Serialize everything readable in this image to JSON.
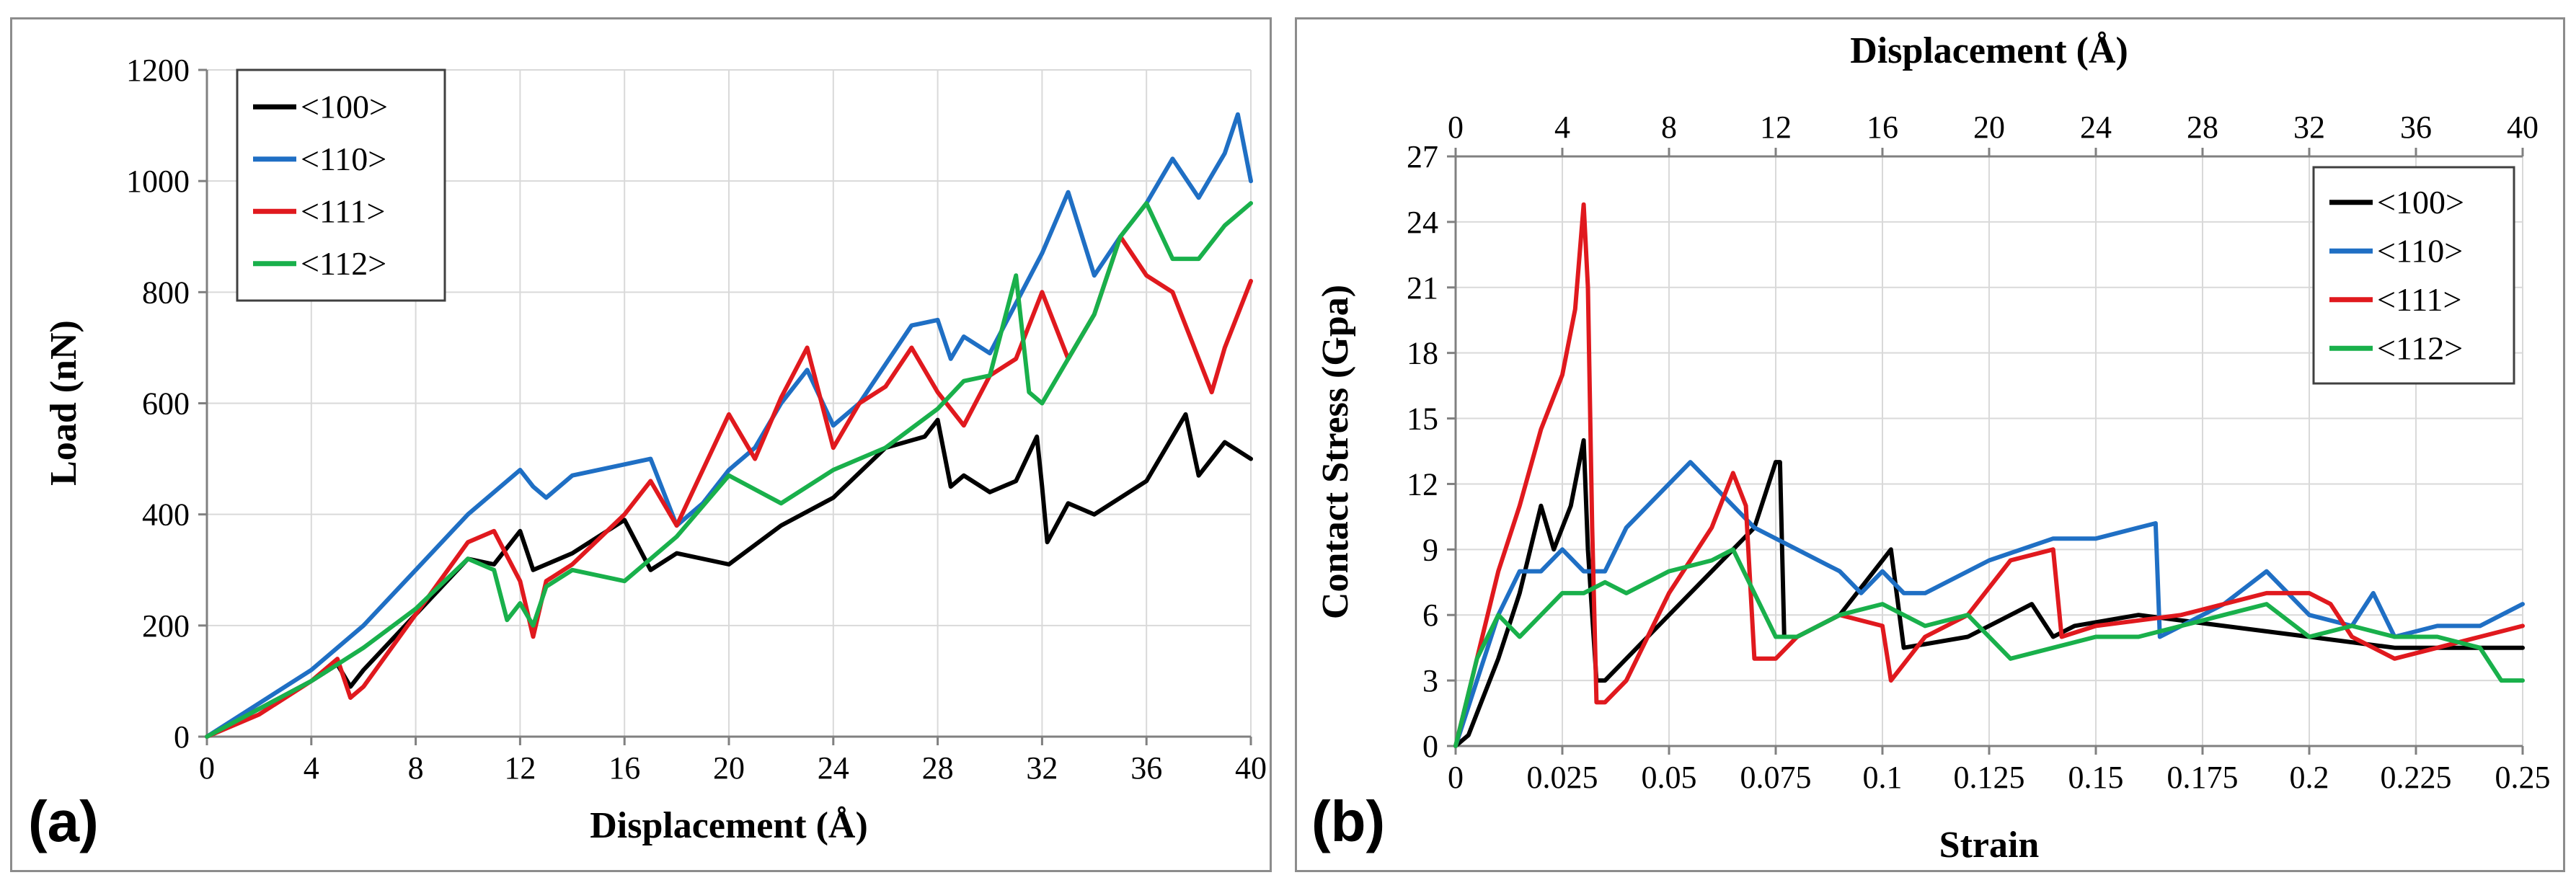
{
  "chart_data": [
    {
      "panel_label": "(a)",
      "type": "line",
      "title": "",
      "xlabel": "Displacement (Å)",
      "ylabel": "Load (nN)",
      "xlim": [
        0,
        40
      ],
      "ylim": [
        0,
        1200
      ],
      "xticks": [
        0,
        4,
        8,
        12,
        16,
        20,
        24,
        28,
        32,
        36,
        40
      ],
      "yticks": [
        0,
        200,
        400,
        600,
        800,
        1000,
        1200
      ],
      "grid": true,
      "legend_position": "top-left",
      "series": [
        {
          "name": "<100>",
          "color": "#000000",
          "x": [
            0,
            2,
            4,
            5,
            5.5,
            6,
            8,
            10,
            11,
            12,
            12.5,
            14,
            16,
            17,
            18,
            20,
            22,
            24,
            26,
            27.5,
            28,
            28.5,
            29,
            30,
            31,
            31.8,
            32,
            32.2,
            33,
            34,
            36,
            37,
            37.5,
            38,
            39,
            40
          ],
          "y": [
            0,
            50,
            100,
            130,
            90,
            120,
            220,
            320,
            310,
            370,
            300,
            330,
            390,
            300,
            330,
            310,
            380,
            430,
            520,
            540,
            570,
            450,
            470,
            440,
            460,
            540,
            450,
            350,
            420,
            400,
            460,
            540,
            580,
            470,
            530,
            500
          ]
        },
        {
          "name": "<110>",
          "color": "#1f6fc4",
          "x": [
            0,
            2,
            4,
            6,
            8,
            10,
            12,
            12.5,
            13,
            14,
            16,
            17,
            18,
            19,
            20,
            21,
            22,
            23,
            24,
            25,
            26,
            27,
            28,
            28.5,
            29,
            30,
            31,
            32,
            33,
            34,
            35,
            36,
            37,
            38,
            39,
            39.5,
            40
          ],
          "y": [
            0,
            60,
            120,
            200,
            300,
            400,
            480,
            450,
            430,
            470,
            490,
            500,
            380,
            420,
            480,
            520,
            600,
            660,
            560,
            600,
            670,
            740,
            750,
            680,
            720,
            690,
            780,
            870,
            980,
            830,
            900,
            960,
            1040,
            970,
            1050,
            1120,
            1000
          ]
        },
        {
          "name": "<111>",
          "color": "#e0191e",
          "x": [
            0,
            2,
            4,
            5,
            5.5,
            6,
            8,
            10,
            11,
            12,
            12.5,
            13,
            14,
            16,
            17,
            18,
            20,
            21,
            22,
            23,
            24,
            25,
            26,
            27,
            28,
            29,
            30,
            31,
            32,
            33,
            34,
            35,
            36,
            37,
            38,
            38.5,
            39,
            40
          ],
          "y": [
            0,
            40,
            100,
            140,
            70,
            90,
            220,
            350,
            370,
            280,
            180,
            280,
            310,
            400,
            460,
            380,
            580,
            500,
            610,
            700,
            520,
            600,
            630,
            700,
            620,
            560,
            650,
            680,
            800,
            680,
            760,
            900,
            830,
            800,
            680,
            620,
            700,
            820
          ]
        },
        {
          "name": "<112>",
          "color": "#19b04b",
          "x": [
            0,
            2,
            4,
            6,
            8,
            10,
            11,
            11.5,
            12,
            12.5,
            13,
            14,
            16,
            18,
            20,
            22,
            24,
            26,
            28,
            29,
            30,
            31,
            31.5,
            32,
            33,
            34,
            35,
            36,
            37,
            38,
            39,
            40
          ],
          "y": [
            0,
            50,
            100,
            160,
            230,
            320,
            300,
            210,
            240,
            200,
            270,
            300,
            280,
            360,
            470,
            420,
            480,
            520,
            590,
            640,
            650,
            830,
            620,
            600,
            680,
            760,
            900,
            960,
            860,
            860,
            920,
            960
          ]
        }
      ]
    },
    {
      "panel_label": "(b)",
      "type": "line",
      "title": "",
      "xlabel": "Strain",
      "x2label": "Displacement (Å)",
      "ylabel": "Contact Stress (Gpa)",
      "xlim": [
        0,
        0.25
      ],
      "x2lim": [
        0,
        40
      ],
      "ylim": [
        0,
        27
      ],
      "xticks": [
        0,
        0.025,
        0.05,
        0.075,
        0.1,
        0.125,
        0.15,
        0.175,
        0.2,
        0.225,
        0.25
      ],
      "xtick_labels": [
        "0",
        "0.025",
        "0.05",
        "0.075",
        "0.1",
        "0.125",
        "0.15",
        "0.175",
        "0.2",
        "0.225",
        "0.25"
      ],
      "x2ticks": [
        0,
        4,
        8,
        12,
        16,
        20,
        24,
        28,
        32,
        36,
        40
      ],
      "yticks": [
        0,
        3,
        6,
        9,
        12,
        15,
        18,
        21,
        24,
        27
      ],
      "grid": true,
      "legend_position": "top-right",
      "series": [
        {
          "name": "<100>",
          "color": "#000000",
          "x": [
            0,
            0.003,
            0.006,
            0.01,
            0.015,
            0.02,
            0.023,
            0.027,
            0.03,
            0.031,
            0.033,
            0.035,
            0.04,
            0.05,
            0.06,
            0.07,
            0.075,
            0.076,
            0.077,
            0.08,
            0.09,
            0.1,
            0.102,
            0.105,
            0.12,
            0.135,
            0.14,
            0.145,
            0.16,
            0.18,
            0.2,
            0.22,
            0.24,
            0.25
          ],
          "y": [
            0,
            0.5,
            2,
            4,
            7,
            11,
            9,
            11,
            14,
            9,
            3,
            3,
            4,
            6,
            8,
            10,
            13,
            13,
            5,
            5,
            6,
            8.5,
            9,
            4.5,
            5,
            6.5,
            5,
            5.5,
            6,
            5.5,
            5,
            4.5,
            4.5,
            4.5
          ]
        },
        {
          "name": "<110>",
          "color": "#1f6fc4",
          "x": [
            0,
            0.005,
            0.01,
            0.015,
            0.02,
            0.025,
            0.03,
            0.035,
            0.04,
            0.05,
            0.055,
            0.06,
            0.065,
            0.07,
            0.08,
            0.09,
            0.095,
            0.1,
            0.105,
            0.11,
            0.125,
            0.14,
            0.15,
            0.16,
            0.164,
            0.165,
            0.17,
            0.18,
            0.19,
            0.2,
            0.21,
            0.215,
            0.22,
            0.23,
            0.24,
            0.25
          ],
          "y": [
            0,
            3,
            6,
            8,
            8,
            9,
            8,
            8,
            10,
            12,
            13,
            12,
            11,
            10,
            9,
            8,
            7,
            8,
            7,
            7,
            8.5,
            9.5,
            9.5,
            10,
            10.2,
            5,
            5.5,
            6.5,
            8,
            6,
            5.5,
            7,
            5,
            5.5,
            5.5,
            6.5
          ]
        },
        {
          "name": "<111>",
          "color": "#e0191e",
          "x": [
            0,
            0.005,
            0.01,
            0.015,
            0.02,
            0.025,
            0.028,
            0.03,
            0.031,
            0.032,
            0.033,
            0.035,
            0.04,
            0.05,
            0.06,
            0.065,
            0.068,
            0.07,
            0.075,
            0.08,
            0.09,
            0.1,
            0.102,
            0.11,
            0.12,
            0.13,
            0.14,
            0.142,
            0.15,
            0.17,
            0.19,
            0.2,
            0.205,
            0.21,
            0.22,
            0.23,
            0.24,
            0.25
          ],
          "y": [
            0,
            4,
            8,
            11,
            14.5,
            17,
            20,
            24.8,
            21,
            10,
            2,
            2,
            3,
            7,
            10,
            12.5,
            11,
            4,
            4,
            5,
            6,
            5.5,
            3,
            5,
            6,
            8.5,
            9,
            5,
            5.5,
            6,
            7,
            7,
            6.5,
            5,
            4,
            4.5,
            5,
            5.5
          ]
        },
        {
          "name": "<112>",
          "color": "#19b04b",
          "x": [
            0,
            0.005,
            0.01,
            0.015,
            0.02,
            0.025,
            0.03,
            0.035,
            0.04,
            0.05,
            0.06,
            0.065,
            0.07,
            0.075,
            0.08,
            0.09,
            0.1,
            0.11,
            0.12,
            0.13,
            0.14,
            0.15,
            0.16,
            0.17,
            0.18,
            0.19,
            0.2,
            0.21,
            0.22,
            0.23,
            0.24,
            0.245,
            0.25
          ],
          "y": [
            0,
            4,
            6,
            5,
            6,
            7,
            7,
            7.5,
            7,
            8,
            8.5,
            9,
            7,
            5,
            5,
            6,
            6.5,
            5.5,
            6,
            4,
            4.5,
            5,
            5,
            5.5,
            6,
            6.5,
            5,
            5.5,
            5,
            5,
            4.5,
            3,
            3
          ]
        }
      ]
    }
  ]
}
